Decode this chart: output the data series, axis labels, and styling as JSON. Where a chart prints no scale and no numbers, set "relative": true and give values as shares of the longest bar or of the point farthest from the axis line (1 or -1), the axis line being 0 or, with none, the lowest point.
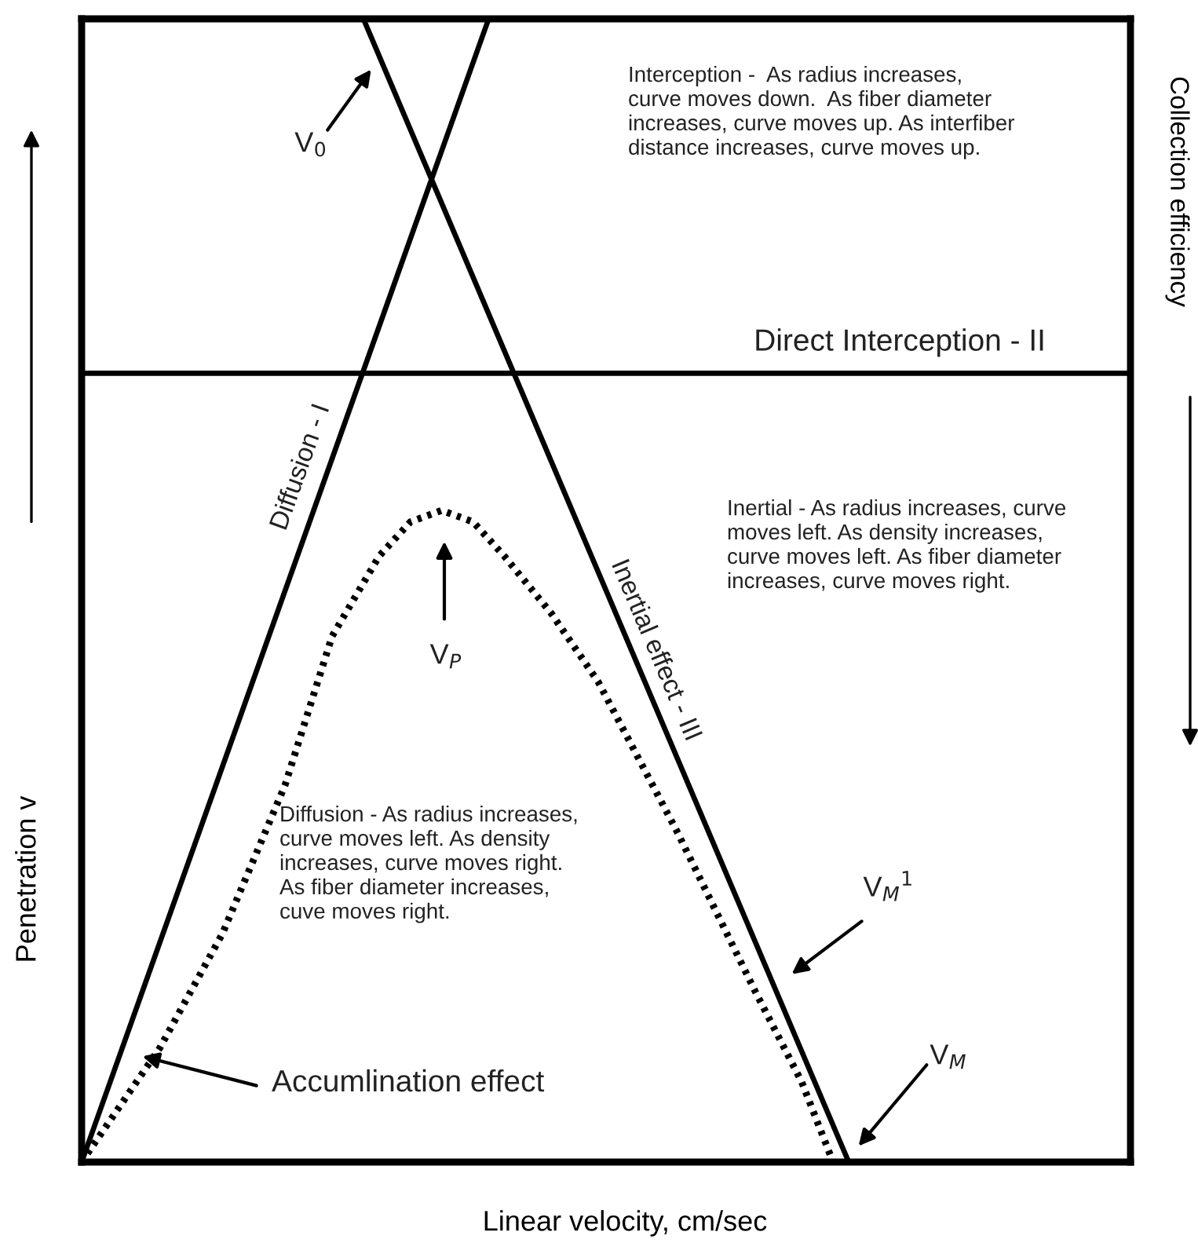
{
  "chart_data": {
    "type": "line",
    "relative": true,
    "categories": [
      null,
      null,
      null,
      null,
      null,
      null,
      null,
      null,
      null,
      null,
      null,
      null,
      null,
      null,
      null,
      null,
      null,
      null,
      null,
      null,
      null,
      null,
      null,
      null,
      null,
      null,
      null,
      null,
      null,
      null,
      null,
      null,
      null,
      null,
      null,
      null,
      null,
      null,
      null,
      null,
      null,
      null,
      null,
      null,
      null,
      null,
      null,
      null,
      null,
      null,
      null,
      null,
      null,
      null,
      null,
      null,
      null,
      null,
      null,
      null,
      null,
      null,
      null,
      null,
      null,
      null,
      null,
      null
    ],
    "series": [
      {
        "name": "Diffusion - I",
        "color": "#000000",
        "line_style": "solid",
        "values": [
          0,
          null,
          null,
          null,
          null,
          null,
          null,
          null,
          null,
          null,
          null,
          null,
          null,
          null,
          null,
          null,
          null,
          null,
          null,
          null,
          null,
          null,
          null,
          null,
          null,
          null,
          1,
          null,
          null,
          null,
          null,
          null,
          null,
          null,
          null,
          null,
          null,
          null,
          null,
          null,
          null,
          null,
          null,
          null,
          null,
          null,
          null,
          null,
          null,
          null,
          null,
          null,
          null,
          null,
          null,
          null,
          null,
          null,
          null,
          null,
          null,
          null,
          null,
          null,
          null,
          null,
          null,
          null
        ]
      },
      {
        "name": "Inertial effect - III",
        "color": "#000000",
        "line_style": "solid",
        "values": [
          null,
          null,
          null,
          null,
          null,
          null,
          null,
          null,
          null,
          null,
          null,
          null,
          null,
          null,
          null,
          null,
          null,
          null,
          1,
          null,
          null,
          null,
          null,
          null,
          null,
          null,
          null,
          null,
          null,
          null,
          null,
          null,
          null,
          null,
          null,
          null,
          null,
          null,
          null,
          null,
          null,
          null,
          null,
          null,
          null,
          null,
          null,
          null,
          null,
          0,
          null,
          null,
          null,
          null,
          null,
          null,
          null,
          null,
          null,
          null,
          null,
          null,
          null,
          null,
          null,
          null,
          null,
          null
        ]
      },
      {
        "name": "Direct Interception - II",
        "color": "#000000",
        "line_style": "solid",
        "values": [
          0.69,
          null,
          null,
          null,
          null,
          null,
          null,
          null,
          null,
          null,
          null,
          null,
          null,
          null,
          null,
          null,
          null,
          null,
          null,
          null,
          null,
          null,
          null,
          null,
          null,
          null,
          null,
          null,
          null,
          null,
          null,
          null,
          null,
          null,
          null,
          null,
          null,
          null,
          null,
          null,
          null,
          null,
          null,
          null,
          null,
          null,
          null,
          null,
          null,
          null,
          null,
          null,
          null,
          null,
          null,
          null,
          null,
          null,
          null,
          null,
          null,
          null,
          null,
          null,
          null,
          null,
          null,
          0.69
        ]
      },
      {
        "color": "#000000",
        "line_style": "dotted",
        "values": [
          0,
          null,
          null,
          null,
          null,
          0.1,
          null,
          null,
          null,
          0.2,
          null,
          null,
          null,
          0.33,
          null,
          null,
          0.46,
          null,
          null,
          0.53,
          null,
          0.56,
          null,
          0.57,
          null,
          0.56,
          null,
          0.53,
          null,
          null,
          0.48,
          null,
          null,
          0.42,
          null,
          null,
          null,
          null,
          0.29,
          null,
          null,
          null,
          null,
          0.15,
          null,
          null,
          0.07,
          null,
          0,
          null,
          null,
          null,
          null,
          null,
          null,
          null,
          null,
          null,
          null,
          null,
          null,
          null,
          null,
          null,
          null,
          null,
          null,
          null
        ]
      }
    ],
    "xlabel": "Linear velocity, cm/sec",
    "ylabel": "Penetration v",
    "y2label": "Collection efficiency",
    "annotations": [
      "Interception -  As radius increases,\ncurve moves down.  As fiber diameter\nincreases, curve moves up. As interfiber\ndistance increases, curve moves up.",
      "Inertial - As radius increases, curve\nmoves left. As density increases,\ncurve moves left. As fiber diameter\nincreases, curve moves right.",
      "Diffusion - As radius increases,\ncurve moves left. As density\nincreases, curve moves right.\nAs fiber diameter increases,\ncuve moves right.",
      "V$_{0}$",
      "V$_{P}$",
      "V$_{M}$$^{1}$",
      "V$_{M}$",
      "Accumlination effect"
    ]
  }
}
